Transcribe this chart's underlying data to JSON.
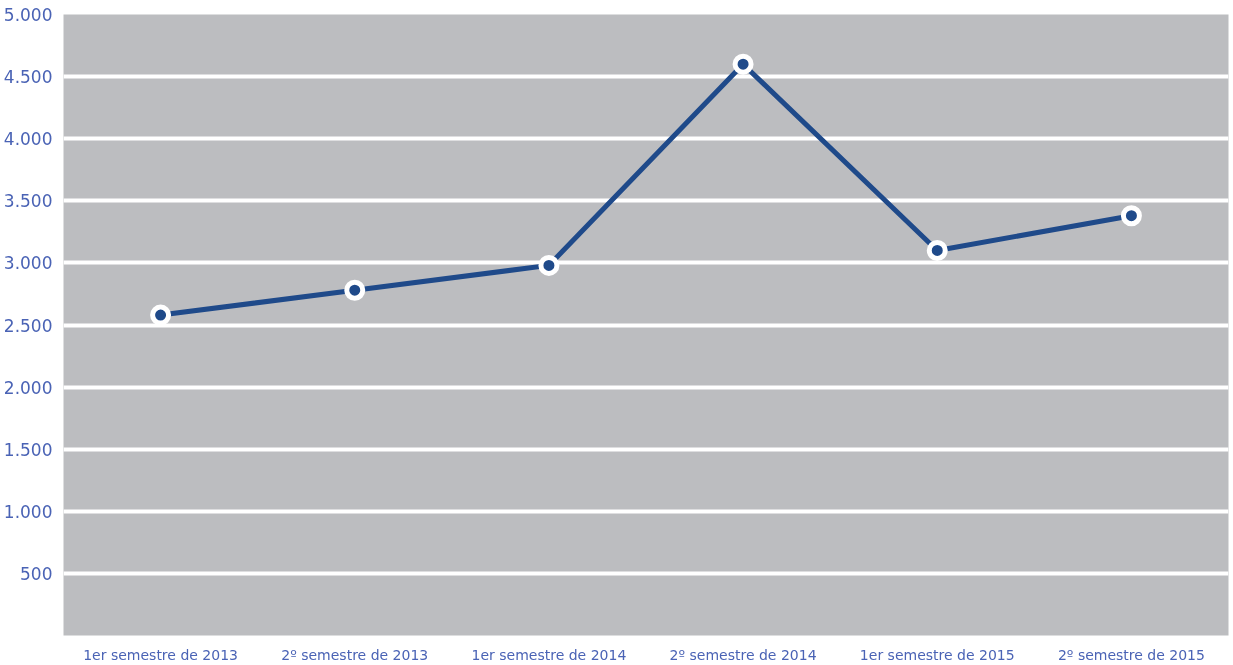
{
  "chart_data": {
    "type": "line",
    "categories": [
      "1er semestre de 2013",
      "2º semestre de 2013",
      "1er semestre de 2014",
      "2º semestre de 2014",
      "1er semestre de 2015",
      "2º semestre de 2015"
    ],
    "series": [
      {
        "color": "#1f4a8a",
        "values": [
          2580,
          2780,
          2980,
          4600,
          3100,
          3380
        ]
      }
    ],
    "ylim": [
      0,
      5000
    ],
    "yticks": [
      {
        "value": 0,
        "label": null
      },
      {
        "value": 500,
        "label": "500"
      },
      {
        "value": 1000,
        "label": "1.000"
      },
      {
        "value": 1500,
        "label": "1.500"
      },
      {
        "value": 2000,
        "label": "2.000"
      },
      {
        "value": 2500,
        "label": "2.500"
      },
      {
        "value": 3000,
        "label": "3.000"
      },
      {
        "value": 3500,
        "label": "3.500"
      },
      {
        "value": 4000,
        "label": "4.000"
      },
      {
        "value": 4500,
        "label": "4.500"
      },
      {
        "value": 5000,
        "label": "5.000"
      }
    ],
    "grid": "y",
    "marker": "circle",
    "line_style": "solid"
  }
}
